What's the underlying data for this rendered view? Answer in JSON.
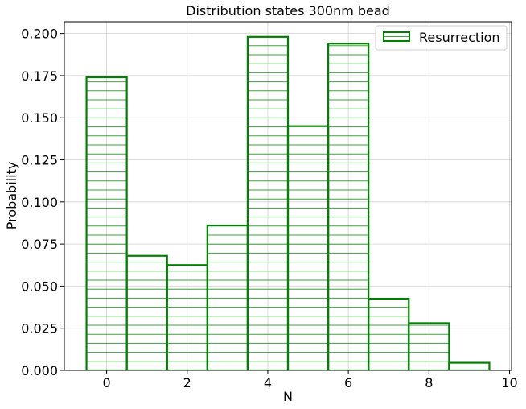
{
  "chart_data": {
    "type": "bar",
    "title": "Distribution states 300nm bead",
    "xlabel": "N",
    "ylabel": "Probability",
    "xlim": [
      -1.05,
      10.05
    ],
    "ylim": [
      0,
      0.207
    ],
    "xticks": [
      0,
      2,
      4,
      6,
      8,
      10
    ],
    "yticks": [
      0.0,
      0.025,
      0.05,
      0.075,
      0.1,
      0.125,
      0.15,
      0.175,
      0.2
    ],
    "ytick_labels": [
      "0.000",
      "0.025",
      "0.050",
      "0.075",
      "0.100",
      "0.125",
      "0.150",
      "0.175",
      "0.200"
    ],
    "bin_edges": [
      -0.5,
      0.5,
      1.5,
      2.5,
      3.5,
      4.5,
      5.5,
      6.5,
      7.5,
      8.5,
      9.5
    ],
    "categories": [
      "0",
      "1",
      "2",
      "3",
      "4",
      "5",
      "6",
      "7",
      "8",
      "9"
    ],
    "series": [
      {
        "name": "Resurrection",
        "values": [
          0.174,
          0.068,
          0.0625,
          0.086,
          0.198,
          0.145,
          0.194,
          0.0425,
          0.028,
          0.0045
        ],
        "color": "#008000",
        "fill": "none",
        "hatch": "horizontal"
      }
    ],
    "grid": true,
    "legend_position": "top-right"
  }
}
